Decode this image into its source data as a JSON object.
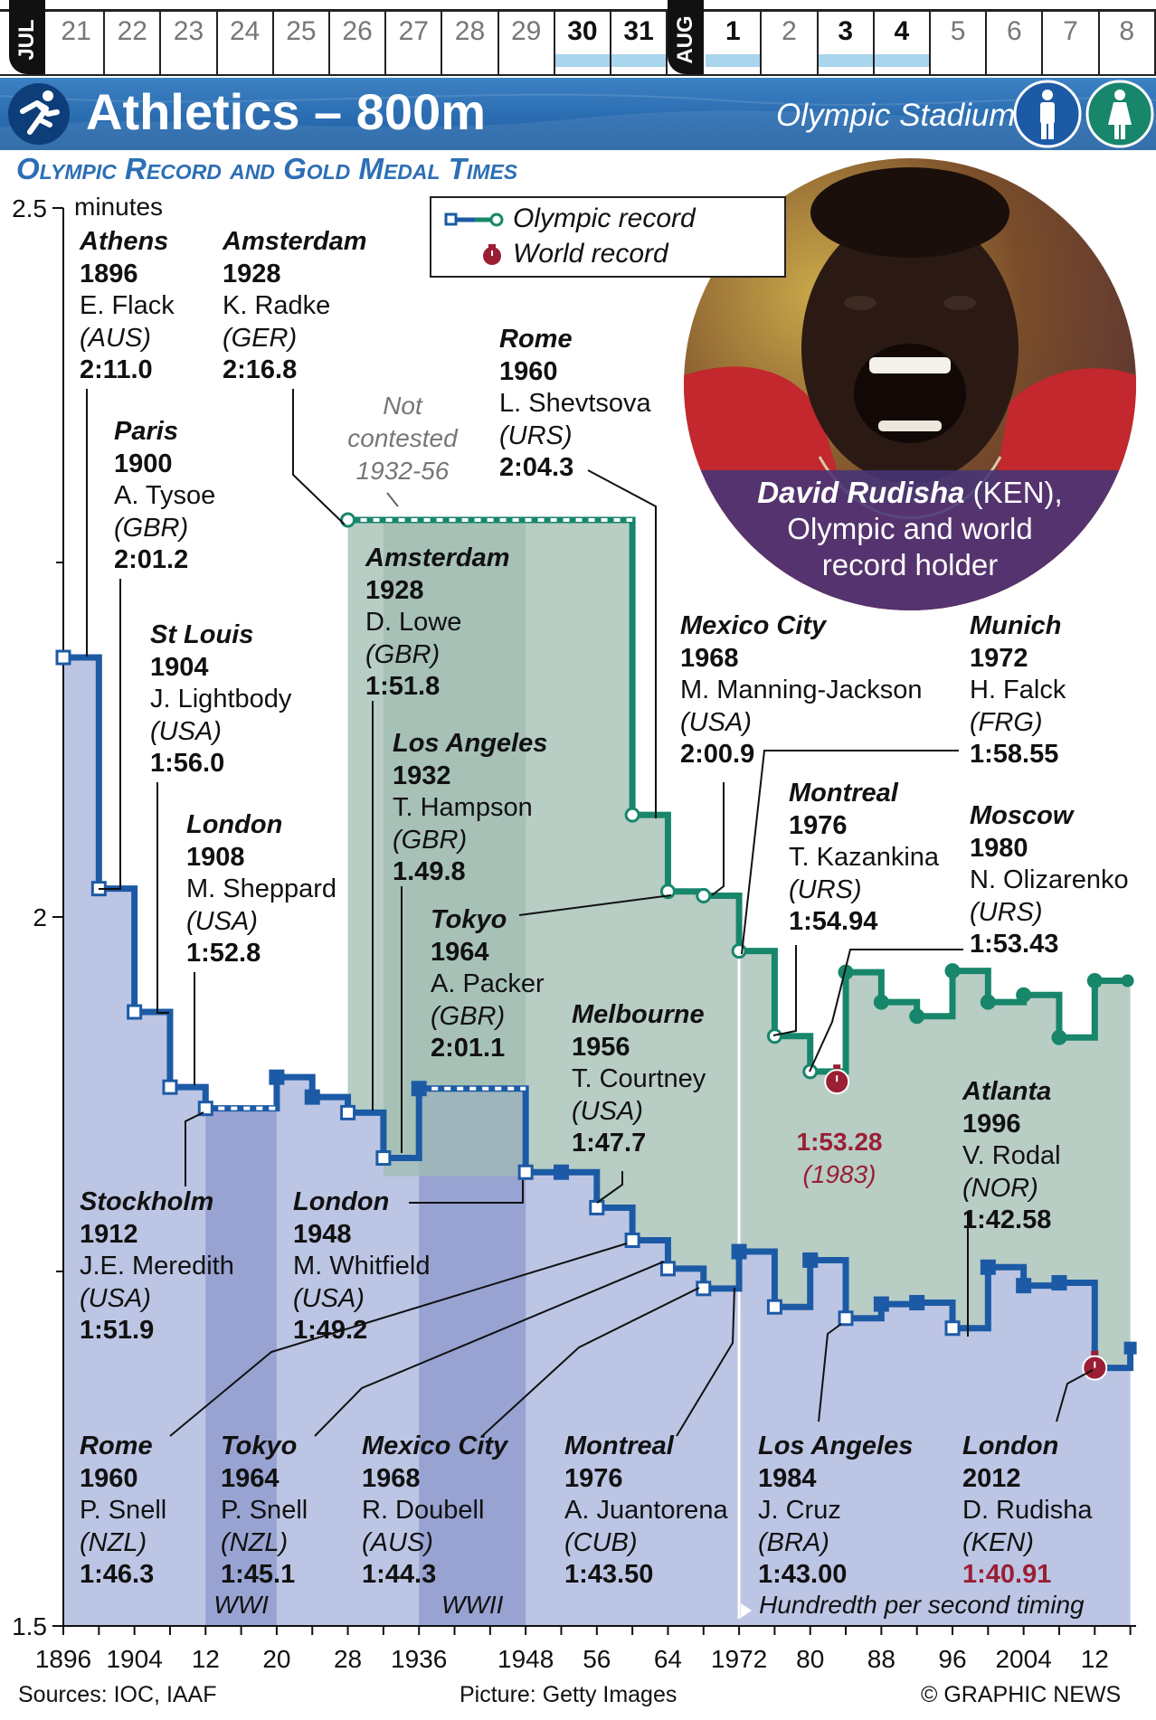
{
  "calendar": {
    "jul_label": "JUL",
    "aug_label": "AUG",
    "jul_days": [
      {
        "d": "21",
        "bold": false,
        "bar": false
      },
      {
        "d": "22",
        "bold": false,
        "bar": false
      },
      {
        "d": "23",
        "bold": false,
        "bar": false
      },
      {
        "d": "24",
        "bold": false,
        "bar": false
      },
      {
        "d": "25",
        "bold": false,
        "bar": false
      },
      {
        "d": "26",
        "bold": false,
        "bar": false
      },
      {
        "d": "27",
        "bold": false,
        "bar": false
      },
      {
        "d": "28",
        "bold": false,
        "bar": false
      },
      {
        "d": "29",
        "bold": false,
        "bar": false
      },
      {
        "d": "30",
        "bold": true,
        "bar": true
      },
      {
        "d": "31",
        "bold": true,
        "bar": true
      }
    ],
    "aug_days": [
      {
        "d": "1",
        "bold": true,
        "bar": true
      },
      {
        "d": "2",
        "bold": false,
        "bar": false
      },
      {
        "d": "3",
        "bold": true,
        "bar": true
      },
      {
        "d": "4",
        "bold": true,
        "bar": true
      },
      {
        "d": "5",
        "bold": false,
        "bar": false
      },
      {
        "d": "6",
        "bold": false,
        "bar": false
      },
      {
        "d": "7",
        "bold": false,
        "bar": false
      },
      {
        "d": "8",
        "bold": false,
        "bar": false
      }
    ]
  },
  "header": {
    "title": "Athletics – 800m",
    "venue": "Olympic Stadium",
    "sport_icon": "runner-icon",
    "men_icon": "man-icon",
    "women_icon": "woman-icon",
    "color_banner": "#2c6fb5",
    "color_men": "#1c5aa6",
    "color_women": "#17866a"
  },
  "chart_title": "Olympic Record and Gold Medal Times",
  "legend": {
    "olympic_record": "Olympic record",
    "world_record": "World record"
  },
  "photo": {
    "caption_name": "David Rudisha",
    "caption_country": " (KEN),",
    "caption_line2": "Olympic and world",
    "caption_line3": "record holder"
  },
  "notes": {
    "not_contested": [
      "Not",
      "contested",
      "1932-56"
    ],
    "wwi": "WWI",
    "wwii": "WWII",
    "timing": "Hundredth per second timing"
  },
  "chart_data": {
    "type": "line",
    "ylabel": "minutes",
    "ylim": [
      1.5,
      2.5
    ],
    "yticks": [
      {
        "v": 2.5,
        "label": "2.5"
      },
      {
        "v": 2.0,
        "label": "2"
      },
      {
        "v": 1.5,
        "label": "1.5"
      }
    ],
    "xlim": [
      1896,
      2016
    ],
    "xticks": [
      {
        "v": 1896,
        "label": "1896"
      },
      {
        "v": 1904,
        "label": "1904"
      },
      {
        "v": 1912,
        "label": "12"
      },
      {
        "v": 1920,
        "label": "20"
      },
      {
        "v": 1928,
        "label": "28"
      },
      {
        "v": 1936,
        "label": "1936"
      },
      {
        "v": 1948,
        "label": "1948"
      },
      {
        "v": 1956,
        "label": "56"
      },
      {
        "v": 1964,
        "label": "64"
      },
      {
        "v": 1972,
        "label": "1972"
      },
      {
        "v": 1980,
        "label": "80"
      },
      {
        "v": 1988,
        "label": "88"
      },
      {
        "v": 1996,
        "label": "96"
      },
      {
        "v": 2004,
        "label": "2004"
      },
      {
        "v": 2012,
        "label": "12"
      }
    ],
    "series": [
      {
        "name": "Men",
        "color": "#1c5aa6",
        "fill": "#bcc5e4",
        "points": [
          {
            "x": 1896,
            "y": 2.183,
            "r": true
          },
          {
            "x": 1900,
            "y": 2.02,
            "r": true
          },
          {
            "x": 1904,
            "y": 1.933,
            "r": true
          },
          {
            "x": 1908,
            "y": 1.88,
            "r": true
          },
          {
            "x": 1912,
            "y": 1.865,
            "r": true
          },
          {
            "x": 1920,
            "y": 1.887,
            "r": false
          },
          {
            "x": 1924,
            "y": 1.873,
            "r": false
          },
          {
            "x": 1928,
            "y": 1.862,
            "r": true
          },
          {
            "x": 1932,
            "y": 1.83,
            "r": true
          },
          {
            "x": 1936,
            "y": 1.879,
            "r": false
          },
          {
            "x": 1948,
            "y": 1.82,
            "r": true
          },
          {
            "x": 1952,
            "y": 1.82,
            "r": false
          },
          {
            "x": 1956,
            "y": 1.795,
            "r": true
          },
          {
            "x": 1960,
            "y": 1.772,
            "r": true
          },
          {
            "x": 1964,
            "y": 1.752,
            "r": true
          },
          {
            "x": 1968,
            "y": 1.738,
            "r": true
          },
          {
            "x": 1972,
            "y": 1.764,
            "r": false
          },
          {
            "x": 1976,
            "y": 1.725,
            "r": true
          },
          {
            "x": 1980,
            "y": 1.758,
            "r": false
          },
          {
            "x": 1984,
            "y": 1.717,
            "r": true
          },
          {
            "x": 1988,
            "y": 1.727,
            "r": false
          },
          {
            "x": 1992,
            "y": 1.728,
            "r": false
          },
          {
            "x": 1996,
            "y": 1.71,
            "r": true
          },
          {
            "x": 2000,
            "y": 1.753,
            "r": false
          },
          {
            "x": 2004,
            "y": 1.74,
            "r": false
          },
          {
            "x": 2008,
            "y": 1.742,
            "r": false
          },
          {
            "x": 2012,
            "y": 1.682,
            "r": true
          }
        ],
        "after_gap": {
          "x": 1928,
          "y": 1.862,
          "note": "gap 1912-1920 and 1936-1948"
        }
      },
      {
        "name": "Women",
        "color": "#17866a",
        "fill": "#b8cdc4",
        "points": [
          {
            "x": 1928,
            "y": 2.28,
            "r": true
          },
          {
            "x": 1960,
            "y": 2.072,
            "r": true
          },
          {
            "x": 1964,
            "y": 2.018,
            "r": true
          },
          {
            "x": 1968,
            "y": 2.015,
            "r": true
          },
          {
            "x": 1972,
            "y": 1.976,
            "r": true
          },
          {
            "x": 1976,
            "y": 1.916,
            "r": true
          },
          {
            "x": 1980,
            "y": 1.891,
            "r": true
          },
          {
            "x": 1984,
            "y": 1.961,
            "r": false
          },
          {
            "x": 1988,
            "y": 1.94,
            "r": false
          },
          {
            "x": 1992,
            "y": 1.93,
            "r": false
          },
          {
            "x": 1996,
            "y": 1.962,
            "r": false
          },
          {
            "x": 2000,
            "y": 1.94,
            "r": false
          },
          {
            "x": 2004,
            "y": 1.945,
            "r": false
          },
          {
            "x": 2008,
            "y": 1.915,
            "r": false
          },
          {
            "x": 2012,
            "y": 1.955,
            "r": false
          }
        ]
      }
    ],
    "world_records": [
      {
        "x": 1983,
        "y": 1.888,
        "label": "1:53.28",
        "sub": "(1983)"
      },
      {
        "x": 2012,
        "y": 1.682,
        "label": "",
        "sub": ""
      }
    ],
    "annotations": [
      {
        "id": "athens1896",
        "city": "Athens",
        "year": "1896",
        "name": "E. Flack",
        "country": "(AUS)",
        "time": "2:11.0"
      },
      {
        "id": "amsterdam1928w",
        "city": "Amsterdam",
        "year": "1928",
        "name": "K. Radke",
        "country": "(GER)",
        "time": "2:16.8"
      },
      {
        "id": "paris1900",
        "city": "Paris",
        "year": "1900",
        "name": "A. Tysoe",
        "country": "(GBR)",
        "time": "2:01.2"
      },
      {
        "id": "stlouis1904",
        "city": "St Louis",
        "year": "1904",
        "name": "J. Lightbody",
        "country": "(USA)",
        "time": "1:56.0"
      },
      {
        "id": "london1908",
        "city": "London",
        "year": "1908",
        "name": "M. Sheppard",
        "country": "(USA)",
        "time": "1:52.8"
      },
      {
        "id": "amsterdam1928m",
        "city": "Amsterdam",
        "year": "1928",
        "name": "D. Lowe",
        "country": "(GBR)",
        "time": "1:51.8"
      },
      {
        "id": "losangeles1932",
        "city": "Los Angeles",
        "year": "1932",
        "name": "T. Hampson",
        "country": "(GBR)",
        "time": "1.49.8"
      },
      {
        "id": "tokyo1964w",
        "city": "Tokyo",
        "year": "1964",
        "name": "A. Packer",
        "country": "(GBR)",
        "time": "2:01.1"
      },
      {
        "id": "rome1960w",
        "city": "Rome",
        "year": "1960",
        "name": "L. Shevtsova",
        "country": "(URS)",
        "time": "2:04.3"
      },
      {
        "id": "mexico1968w",
        "city": "Mexico City",
        "year": "1968",
        "name": "M. Manning-Jackson",
        "country": "(USA)",
        "time": "2:00.9"
      },
      {
        "id": "munich1972",
        "city": "Munich",
        "year": "1972",
        "name": "H. Falck",
        "country": "(FRG)",
        "time": "1:58.55"
      },
      {
        "id": "montreal1976w",
        "city": "Montreal",
        "year": "1976",
        "name": "T. Kazankina",
        "country": "(URS)",
        "time": "1:54.94"
      },
      {
        "id": "moscow1980",
        "city": "Moscow",
        "year": "1980",
        "name": "N. Olizarenko",
        "country": "(URS)",
        "time": "1:53.43"
      },
      {
        "id": "melbourne1956",
        "city": "Melbourne",
        "year": "1956",
        "name": "T. Courtney",
        "country": "(USA)",
        "time": "1:47.7"
      },
      {
        "id": "atlanta1996",
        "city": "Atlanta",
        "year": "1996",
        "name": "V. Rodal",
        "country": "(NOR)",
        "time": "1:42.58"
      },
      {
        "id": "stockholm1912",
        "city": "Stockholm",
        "year": "1912",
        "name": "J.E. Meredith",
        "country": "(USA)",
        "time": "1:51.9"
      },
      {
        "id": "london1948",
        "city": "London",
        "year": "1948",
        "name": "M. Whitfield",
        "country": "(USA)",
        "time": "1:49.2"
      },
      {
        "id": "rome1960m",
        "city": "Rome",
        "year": "1960",
        "name": "P. Snell",
        "country": "(NZL)",
        "time": "1:46.3"
      },
      {
        "id": "tokyo1964m",
        "city": "Tokyo",
        "year": "1964",
        "name": "P. Snell",
        "country": "(NZL)",
        "time": "1:45.1"
      },
      {
        "id": "mexico1968m",
        "city": "Mexico City",
        "year": "1968",
        "name": "R. Doubell",
        "country": "(AUS)",
        "time": "1:44.3"
      },
      {
        "id": "montreal1976m",
        "city": "Montreal",
        "year": "1976",
        "name": "A. Juantorena",
        "country": "(CUB)",
        "time": "1:43.50"
      },
      {
        "id": "losangeles1984",
        "city": "Los Angeles",
        "year": "1984",
        "name": "J. Cruz",
        "country": "(BRA)",
        "time": "1:43.00"
      },
      {
        "id": "london2012",
        "city": "London",
        "year": "2012",
        "name": "D. Rudisha",
        "country": "(KEN)",
        "time": "1:40.91"
      }
    ]
  },
  "footer": {
    "sources": "Sources: IOC, IAAF",
    "picture": "Picture: Getty Images",
    "credit": "© GRAPHIC NEWS"
  }
}
